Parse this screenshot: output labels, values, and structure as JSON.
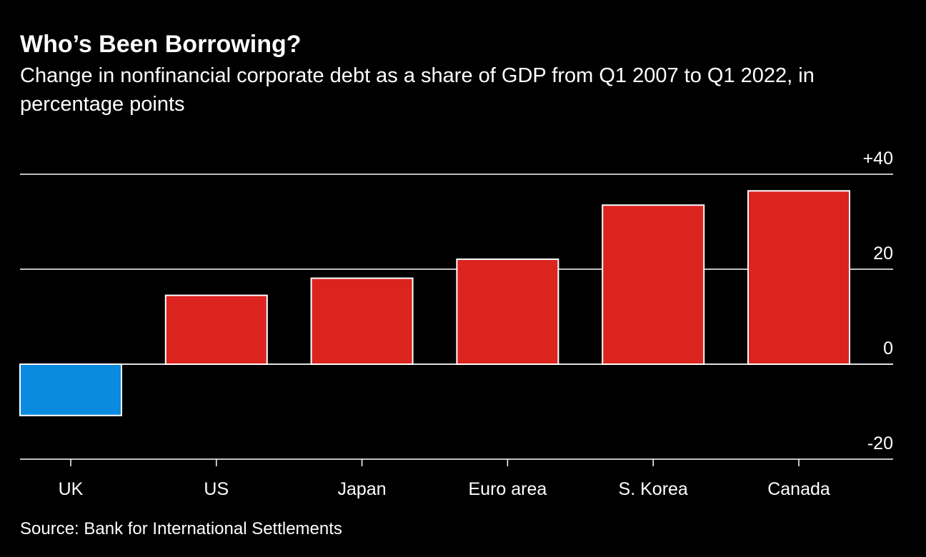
{
  "header": {
    "title": "Who’s Been Borrowing?",
    "subtitle": "Change in nonfinancial corporate debt as a share of GDP from Q1 2007 to Q1 2022, in percentage points"
  },
  "footer": {
    "source": "Source: Bank for International Settlements"
  },
  "colors": {
    "background": "#000000",
    "positive_bar": "#dc241f",
    "negative_bar": "#0a8be0",
    "grid": "#ffffff",
    "text": "#ffffff"
  },
  "chart_data": {
    "type": "bar",
    "title": "Who’s Been Borrowing?",
    "subtitle": "Change in nonfinancial corporate debt as a share of GDP from Q1 2007 to Q1 2022, in percentage points",
    "categories": [
      "UK",
      "US",
      "Japan",
      "Euro area",
      "S. Korea",
      "Canada"
    ],
    "values": [
      -10.8,
      14.5,
      18.1,
      22.1,
      33.5,
      36.5
    ],
    "ylim": [
      -20,
      40
    ],
    "yticks": [
      40,
      20,
      0,
      -20
    ],
    "ytick_labels": [
      "+40",
      "20",
      "0",
      "-20"
    ],
    "xlabel": "",
    "ylabel": "",
    "grid": true,
    "legend": "none"
  }
}
